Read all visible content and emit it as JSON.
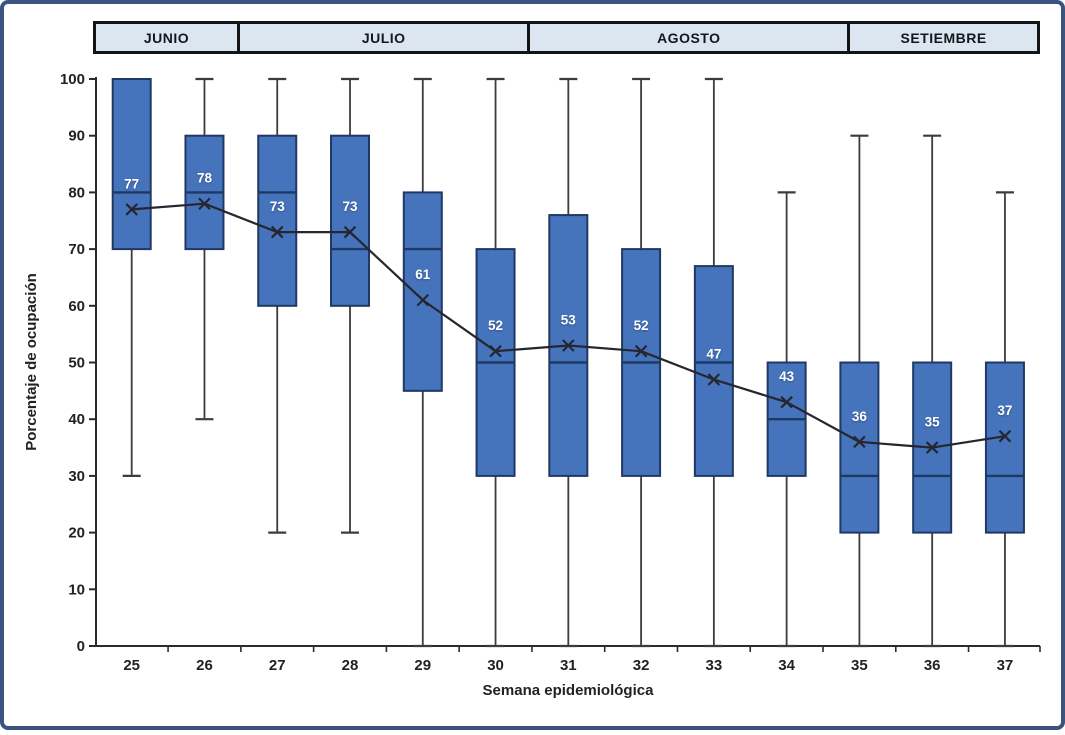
{
  "figure": {
    "frame_color": "#3A5381",
    "background": "#FFFFFF"
  },
  "month_header": {
    "fill": "#DCE6F1",
    "border_color": "#141414",
    "text_color": "#15171C",
    "cells": [
      {
        "label": "JUNIO",
        "weeks": [
          25,
          26
        ]
      },
      {
        "label": "JULIO",
        "weeks": [
          27,
          28,
          29,
          30
        ]
      },
      {
        "label": "AGOSTO",
        "weeks": [
          31,
          32,
          33,
          34
        ]
      },
      {
        "label": "SETIEMBRE",
        "weeks": [
          35,
          36,
          37
        ]
      }
    ]
  },
  "chart_data": {
    "type": "boxplot",
    "title": "",
    "xlabel": "Semana epidemiológica",
    "ylabel": "Porcentaje de ocupación",
    "categories": [
      25,
      26,
      27,
      28,
      29,
      30,
      31,
      32,
      33,
      34,
      35,
      36,
      37
    ],
    "ylim": [
      0,
      100
    ],
    "yticks": [
      0,
      10,
      20,
      30,
      40,
      50,
      60,
      70,
      80,
      90,
      100
    ],
    "grid": false,
    "legend": "none",
    "boxes": [
      {
        "week": 25,
        "whisker_low": 30,
        "q1": 70,
        "median": 80,
        "q3": 100,
        "whisker_high": 100,
        "mean": 77
      },
      {
        "week": 26,
        "whisker_low": 40,
        "q1": 70,
        "median": 80,
        "q3": 90,
        "whisker_high": 100,
        "mean": 78
      },
      {
        "week": 27,
        "whisker_low": 20,
        "q1": 60,
        "median": 80,
        "q3": 90,
        "whisker_high": 100,
        "mean": 73
      },
      {
        "week": 28,
        "whisker_low": 20,
        "q1": 60,
        "median": 70,
        "q3": 90,
        "whisker_high": 100,
        "mean": 73
      },
      {
        "week": 29,
        "whisker_low": 0,
        "q1": 45,
        "median": 70,
        "q3": 80,
        "whisker_high": 100,
        "mean": 61
      },
      {
        "week": 30,
        "whisker_low": 0,
        "q1": 30,
        "median": 50,
        "q3": 70,
        "whisker_high": 100,
        "mean": 52
      },
      {
        "week": 31,
        "whisker_low": 0,
        "q1": 30,
        "median": 50,
        "q3": 76,
        "whisker_high": 100,
        "mean": 53
      },
      {
        "week": 32,
        "whisker_low": 0,
        "q1": 30,
        "median": 50,
        "q3": 70,
        "whisker_high": 100,
        "mean": 52
      },
      {
        "week": 33,
        "whisker_low": 0,
        "q1": 30,
        "median": 50,
        "q3": 67,
        "whisker_high": 100,
        "mean": 47
      },
      {
        "week": 34,
        "whisker_low": 0,
        "q1": 30,
        "median": 40,
        "q3": 50,
        "whisker_high": 80,
        "mean": 43
      },
      {
        "week": 35,
        "whisker_low": 0,
        "q1": 20,
        "median": 30,
        "q3": 50,
        "whisker_high": 90,
        "mean": 36
      },
      {
        "week": 36,
        "whisker_low": 0,
        "q1": 20,
        "median": 30,
        "q3": 50,
        "whisker_high": 90,
        "mean": 35
      },
      {
        "week": 37,
        "whisker_low": 0,
        "q1": 20,
        "median": 30,
        "q3": 50,
        "whisker_high": 80,
        "mean": 37
      }
    ],
    "mean_line": {
      "name": "mean",
      "marker": "x",
      "values": [
        77,
        78,
        73,
        73,
        61,
        52,
        53,
        52,
        47,
        43,
        36,
        35,
        37
      ]
    },
    "mean_labels": [
      "77",
      "78",
      "73",
      "73",
      "61",
      "52",
      "53",
      "52",
      "47",
      "43",
      "36",
      "35",
      "37"
    ],
    "colors": {
      "box_fill": "#4674BC",
      "box_border": "#1F3864",
      "median_line": "#1F3864",
      "whisker": "#3C3C3C",
      "mean_line": "#262630",
      "axis": "#2B2B2B",
      "tick_text": "#222222",
      "mean_label_text": "#FFFFFF"
    }
  }
}
